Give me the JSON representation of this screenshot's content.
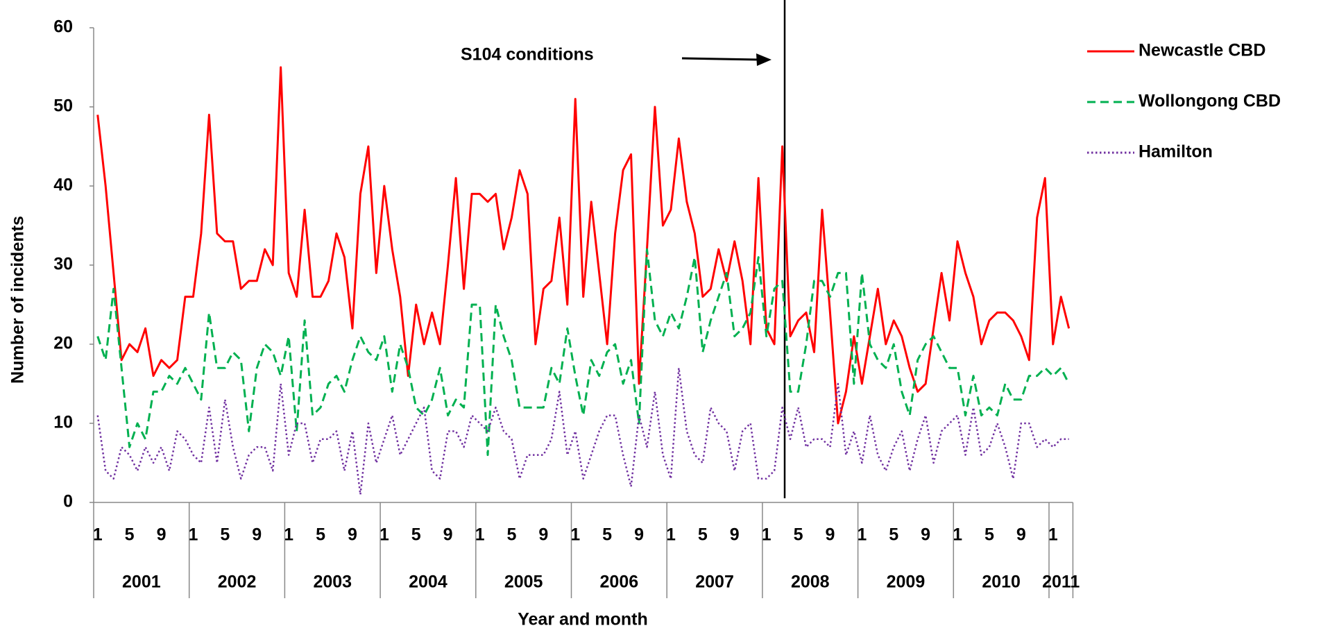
{
  "chart_data": {
    "type": "line",
    "y_label": "Number of incidents",
    "x_label": "Year and month",
    "annotation": "S104 conditions",
    "categories": [
      "1",
      null,
      null,
      null,
      "5",
      null,
      null,
      null,
      "9",
      null,
      null,
      null,
      "1",
      null,
      null,
      null,
      "5",
      null,
      null,
      null,
      "9",
      null,
      null,
      null,
      "1",
      null,
      null,
      null,
      "5",
      null,
      null,
      null,
      "9",
      null,
      null,
      null,
      "1",
      null,
      null,
      null,
      "5",
      null,
      null,
      null,
      "9",
      null,
      null,
      null,
      "1",
      null,
      null,
      null,
      "5",
      null,
      null,
      null,
      "9",
      null,
      null,
      null,
      "1",
      null,
      null,
      null,
      "5",
      null,
      null,
      null,
      "9",
      null,
      null,
      null,
      "1",
      null,
      null,
      null,
      "5",
      null,
      null,
      null,
      "9",
      null,
      null,
      null,
      "1",
      null,
      null,
      null,
      "5",
      null,
      null,
      null,
      "9",
      null,
      null,
      null,
      "1",
      null,
      null,
      null,
      "5",
      null,
      null,
      null,
      "9",
      null,
      null,
      null,
      "1",
      null,
      null,
      null,
      "5",
      null,
      null,
      null,
      "9",
      null,
      null,
      null,
      "1",
      null,
      null
    ],
    "x_groups": [
      "2001",
      "2002",
      "2003",
      "2004",
      "2005",
      "2006",
      "2007",
      "2008",
      "2009",
      "2010",
      "2011"
    ],
    "series": [
      {
        "name": "Newcastle CBD",
        "color": "#ff0000",
        "style": "solid",
        "values": [
          49,
          40,
          29,
          18,
          20,
          19,
          22,
          16,
          18,
          17,
          18,
          26,
          26,
          34,
          49,
          34,
          33,
          33,
          27,
          28,
          28,
          32,
          30,
          55,
          29,
          26,
          37,
          26,
          26,
          28,
          34,
          31,
          22,
          39,
          45,
          29,
          40,
          32,
          26,
          16,
          25,
          20,
          24,
          20,
          30,
          41,
          27,
          39,
          39,
          38,
          39,
          32,
          36,
          42,
          39,
          20,
          27,
          28,
          36,
          25,
          51,
          26,
          38,
          29,
          20,
          34,
          42,
          44,
          15,
          32,
          50,
          35,
          37,
          46,
          38,
          34,
          26,
          27,
          32,
          28,
          33,
          28,
          20,
          41,
          22,
          20,
          45,
          21,
          23,
          24,
          19,
          37,
          24,
          10,
          14,
          21,
          15,
          21,
          27,
          20,
          23,
          21,
          17,
          14,
          15,
          22,
          29,
          23,
          33,
          29,
          26,
          20,
          23,
          24,
          24,
          23,
          21,
          18,
          36,
          41,
          20,
          26,
          22
        ]
      },
      {
        "name": "Wollongong CBD",
        "color": "#00b050",
        "style": "dashed",
        "values": [
          21,
          18,
          27,
          17,
          7,
          10,
          8,
          14,
          14,
          16,
          15,
          17,
          15,
          13,
          24,
          17,
          17,
          19,
          18,
          9,
          17,
          20,
          19,
          16,
          21,
          9,
          23,
          11,
          12,
          15,
          16,
          14,
          18,
          21,
          19,
          18,
          21,
          14,
          20,
          17,
          12,
          11,
          13,
          17,
          11,
          13,
          12,
          25,
          25,
          6,
          25,
          21,
          18,
          12,
          12,
          12,
          12,
          17,
          15,
          22,
          16,
          11,
          18,
          16,
          19,
          20,
          15,
          18,
          10,
          32,
          23,
          21,
          24,
          22,
          26,
          31,
          19,
          23,
          26,
          29,
          21,
          22,
          24,
          31,
          21,
          27,
          28,
          14,
          14,
          20,
          28,
          28,
          26,
          29,
          29,
          15,
          29,
          20,
          18,
          17,
          20,
          14,
          11,
          18,
          20,
          21,
          19,
          17,
          17,
          11,
          16,
          11,
          12,
          11,
          15,
          13,
          13,
          16,
          16,
          17,
          16,
          17,
          15
        ]
      },
      {
        "name": "Hamilton",
        "color": "#7030a0",
        "style": "dotted",
        "values": [
          11,
          4,
          3,
          7,
          6,
          4,
          7,
          5,
          7,
          4,
          9,
          8,
          6,
          5,
          12,
          5,
          13,
          7,
          3,
          6,
          7,
          7,
          4,
          15,
          6,
          10,
          10,
          5,
          8,
          8,
          9,
          4,
          9,
          1,
          10,
          5,
          8,
          11,
          6,
          8,
          10,
          12,
          4,
          3,
          9,
          9,
          7,
          11,
          10,
          9,
          12,
          9,
          8,
          3,
          6,
          6,
          6,
          8,
          14,
          6,
          9,
          3,
          6,
          9,
          11,
          11,
          6,
          2,
          11,
          7,
          14,
          6,
          3,
          17,
          9,
          6,
          5,
          12,
          10,
          9,
          4,
          9,
          10,
          3,
          3,
          4,
          12,
          8,
          12,
          7,
          8,
          8,
          7,
          15,
          6,
          9,
          5,
          11,
          6,
          4,
          7,
          9,
          4,
          8,
          11,
          5,
          9,
          10,
          11,
          6,
          12,
          6,
          7,
          10,
          7,
          3,
          10,
          10,
          7,
          8,
          7,
          8,
          8
        ]
      }
    ],
    "ylim": [
      0,
      60
    ],
    "yticks": [
      0,
      10,
      20,
      30,
      40,
      50,
      60
    ],
    "grid": false,
    "legend": "right"
  }
}
